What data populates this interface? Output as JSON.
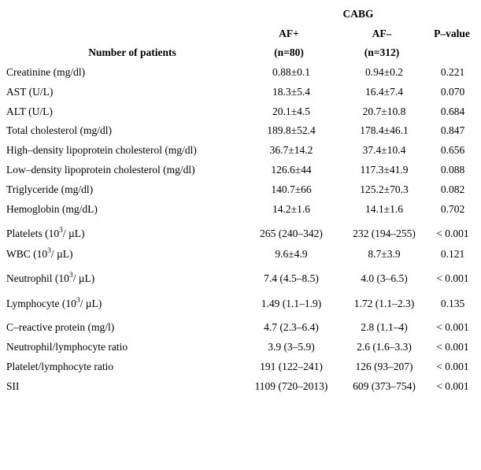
{
  "table": {
    "header": {
      "group": "CABG",
      "columns": [
        "AF+",
        "AF–",
        "P–value"
      ],
      "row_label": "Number of patients",
      "counts": [
        "(n=80)",
        "(n=312)"
      ]
    },
    "rows": [
      [
        {
          "text": "Creatinine (mg/dl)"
        },
        "0.88±0.1",
        "0.94±0.2",
        "0.221"
      ],
      [
        {
          "text": "AST (U/L)"
        },
        "18.3±5.4",
        "16.4±7.4",
        "0.070"
      ],
      [
        {
          "text": "ALT (U/L)"
        },
        "20.1±4.5",
        "20.7±10.8",
        "0.684"
      ],
      [
        {
          "text": "Total cholesterol (mg/dl)"
        },
        "189.8±52.4",
        "178.4±46.1",
        "0.847"
      ],
      [
        {
          "text": "High–density lipoprotein cholesterol (mg/dl)"
        },
        "36.7±14.2",
        "37.4±10.4",
        "0.656"
      ],
      [
        {
          "text": "Low–density lipoprotein cholesterol (mg/dl)"
        },
        "126.6±44",
        "117.3±41.9",
        "0.088"
      ],
      [
        {
          "text": "Triglyceride (mg/dl)"
        },
        "140.7±66",
        "125.2±70.3",
        "0.082"
      ],
      [
        {
          "text": "Hemoglobin (mg/dL)"
        },
        "14.2±1.6",
        "14.1±1.6",
        "0.702"
      ],
      [
        {
          "text": "Platelets (10",
          "sup": "3",
          "tail": "/ µL)"
        },
        "265 (240–342)",
        "232 (194–255)",
        "< 0.001"
      ],
      [
        {
          "text": "WBC (10",
          "sup": "3",
          "tail": "/ µL)"
        },
        "9.6±4.9",
        "8.7±3.9",
        "0.121"
      ],
      [
        {
          "text": "Neutrophil (10",
          "sup": "3",
          "tail": "/ µL)"
        },
        "7.4 (4.5–8.5)",
        "4.0 (3–6.5)",
        "< 0.001"
      ],
      [
        {
          "text": "Lymphocyte (10",
          "sup": "3",
          "tail": "/ µL)"
        },
        "1.49 (1.1–1.9)",
        "1.72 (1.1–2.3)",
        "0.135"
      ],
      [
        {
          "text": "C–reactive protein (mg/l)"
        },
        "4.7 (2.3–6.4)",
        "2.8 (1.1–4)",
        "< 0.001"
      ],
      [
        {
          "text": "Neutrophil/lymphocyte ratio"
        },
        "3.9 (3–5.9)",
        "2.6 (1.6–3.3)",
        "< 0.001"
      ],
      [
        {
          "text": "Platelet/lymphocyte ratio"
        },
        "191 (122–241)",
        "126 (93–207)",
        "< 0.001"
      ],
      [
        {
          "text": "SII"
        },
        "1109 (720–2013)",
        "609 (373–754)",
        "< 0.001"
      ]
    ]
  }
}
